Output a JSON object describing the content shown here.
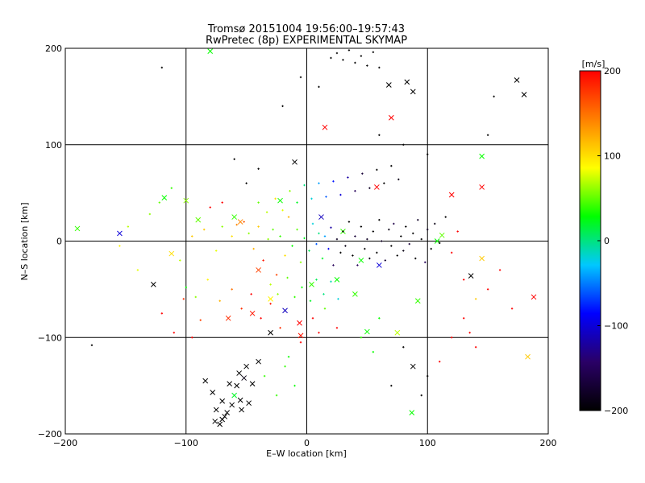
{
  "chart_data": {
    "type": "scatter",
    "title": "Tromsø 20151004 19:56:00–19:57:43",
    "subtitle": "RwPretec (8p) EXPERIMENTAL SKYMAP",
    "xlabel": "E–W location [km]",
    "ylabel": "N–S location [km]",
    "xlim": [
      -200,
      200
    ],
    "ylim": [
      -200,
      200
    ],
    "xticks": [
      "−200",
      "−100",
      "0",
      "100",
      "200"
    ],
    "yticks": [
      "−200",
      "−100",
      "0",
      "100",
      "200"
    ],
    "grid": true,
    "colorbar": {
      "label": "[m/s]",
      "range": [
        -200,
        200
      ],
      "ticks": [
        "200",
        "100",
        "0",
        "−100",
        "−200"
      ],
      "stops": [
        "#000000",
        "#2a0066",
        "#0000ff",
        "#00c8ff",
        "#00ff00",
        "#ffff00",
        "#ff8000",
        "#ff0000"
      ]
    },
    "series": [
      {
        "marker": "x",
        "points": [
          [
            -190,
            13,
            40
          ],
          [
            -155,
            8,
            -100
          ],
          [
            -118,
            45,
            30
          ],
          [
            -100,
            42,
            60
          ],
          [
            -90,
            22,
            50
          ],
          [
            -127,
            -45,
            -200
          ],
          [
            -112,
            -13,
            100
          ],
          [
            -60,
            25,
            40
          ],
          [
            -55,
            20,
            140
          ],
          [
            -40,
            -30,
            170
          ],
          [
            -22,
            42,
            30
          ],
          [
            -30,
            -60,
            90
          ],
          [
            -18,
            -72,
            -110
          ],
          [
            -6,
            -85,
            200
          ],
          [
            -5,
            -98,
            190
          ],
          [
            -45,
            -75,
            190
          ],
          [
            -65,
            -80,
            180
          ],
          [
            -80,
            197,
            30
          ],
          [
            -70,
            -185,
            -200
          ],
          [
            -62,
            -170,
            -200
          ],
          [
            -58,
            -150,
            -200
          ],
          [
            -52,
            -142,
            -190
          ],
          [
            -55,
            -165,
            -200
          ],
          [
            -66,
            -178,
            -200
          ],
          [
            -60,
            -160,
            20
          ],
          [
            -72,
            -190,
            -200
          ],
          [
            -45,
            -148,
            -200
          ],
          [
            -50,
            -130,
            -200
          ],
          [
            -40,
            -125,
            -200
          ],
          [
            -30,
            -95,
            -200
          ],
          [
            -84,
            -145,
            -200
          ],
          [
            -78,
            -157,
            -200
          ],
          [
            -75,
            -175,
            -200
          ],
          [
            -68,
            -182,
            -200
          ],
          [
            -54,
            -175,
            -200
          ],
          [
            -48,
            -168,
            -200
          ],
          [
            -56,
            -137,
            -200
          ],
          [
            -64,
            -148,
            -200
          ],
          [
            -70,
            -166,
            -200
          ],
          [
            -76,
            -187,
            -200
          ],
          [
            -10,
            82,
            -200
          ],
          [
            15,
            118,
            200
          ],
          [
            70,
            128,
            200
          ],
          [
            68,
            162,
            -200
          ],
          [
            83,
            165,
            -200
          ],
          [
            88,
            155,
            -200
          ],
          [
            180,
            152,
            -200
          ],
          [
            174,
            167,
            -200
          ],
          [
            108,
            0,
            30
          ],
          [
            112,
            6,
            50
          ],
          [
            120,
            48,
            200
          ],
          [
            145,
            56,
            200
          ],
          [
            145,
            88,
            30
          ],
          [
            145,
            -18,
            110
          ],
          [
            136,
            -36,
            -200
          ],
          [
            188,
            -58,
            200
          ],
          [
            183,
            -120,
            110
          ],
          [
            92,
            -62,
            40
          ],
          [
            88,
            -130,
            -200
          ],
          [
            87,
            -178,
            30
          ],
          [
            50,
            -94,
            30
          ],
          [
            40,
            -55,
            40
          ],
          [
            60,
            -25,
            -100
          ],
          [
            75,
            -95,
            70
          ],
          [
            12,
            25,
            -110
          ],
          [
            45,
            -20,
            30
          ],
          [
            58,
            56,
            200
          ],
          [
            30,
            10,
            40
          ],
          [
            25,
            -40,
            30
          ],
          [
            4,
            -45,
            40
          ]
        ]
      },
      {
        "marker": "+",
        "points": [
          [
            -178,
            -108,
            -200
          ],
          [
            -155,
            -5,
            90
          ],
          [
            -105,
            -20,
            70
          ],
          [
            -95,
            5,
            110
          ],
          [
            -85,
            12,
            110
          ],
          [
            -75,
            -10,
            80
          ],
          [
            -70,
            15,
            60
          ],
          [
            -62,
            5,
            100
          ],
          [
            -58,
            17,
            140
          ],
          [
            -52,
            20,
            160
          ],
          [
            -48,
            8,
            60
          ],
          [
            -44,
            -8,
            120
          ],
          [
            -40,
            15,
            110
          ],
          [
            -36,
            -20,
            190
          ],
          [
            -32,
            2,
            60
          ],
          [
            -28,
            12,
            50
          ],
          [
            -25,
            -35,
            170
          ],
          [
            -22,
            5,
            40
          ],
          [
            -18,
            -15,
            100
          ],
          [
            -15,
            25,
            120
          ],
          [
            -12,
            -5,
            30
          ],
          [
            -8,
            12,
            50
          ],
          [
            -5,
            -22,
            60
          ],
          [
            -2,
            3,
            20
          ],
          [
            2,
            -10,
            10
          ],
          [
            5,
            18,
            -20
          ],
          [
            8,
            -3,
            -60
          ],
          [
            10,
            8,
            0
          ],
          [
            13,
            -18,
            20
          ],
          [
            15,
            5,
            -40
          ],
          [
            18,
            -8,
            -90
          ],
          [
            20,
            14,
            -120
          ],
          [
            22,
            -25,
            -150
          ],
          [
            25,
            2,
            -180
          ],
          [
            28,
            -12,
            -200
          ],
          [
            30,
            10,
            -200
          ],
          [
            32,
            -5,
            -190
          ],
          [
            35,
            20,
            -200
          ],
          [
            38,
            -15,
            -200
          ],
          [
            40,
            5,
            -170
          ],
          [
            42,
            -25,
            -150
          ],
          [
            45,
            15,
            -200
          ],
          [
            48,
            -8,
            -200
          ],
          [
            50,
            2,
            -180
          ],
          [
            52,
            -18,
            -190
          ],
          [
            55,
            10,
            -200
          ],
          [
            58,
            -12,
            -200
          ],
          [
            60,
            22,
            -200
          ],
          [
            62,
            0,
            -180
          ],
          [
            65,
            -20,
            -170
          ],
          [
            68,
            12,
            -190
          ],
          [
            70,
            -5,
            -200
          ],
          [
            72,
            18,
            -160
          ],
          [
            75,
            -15,
            -200
          ],
          [
            78,
            5,
            -200
          ],
          [
            80,
            -10,
            -190
          ],
          [
            82,
            15,
            -200
          ],
          [
            85,
            -3,
            -170
          ],
          [
            88,
            8,
            -200
          ],
          [
            90,
            -18,
            -200
          ],
          [
            92,
            22,
            -180
          ],
          [
            95,
            2,
            -200
          ],
          [
            98,
            -22,
            -150
          ],
          [
            100,
            12,
            -180
          ],
          [
            103,
            -8,
            -200
          ],
          [
            106,
            18,
            -190
          ],
          [
            110,
            -2,
            -200
          ],
          [
            115,
            25,
            -200
          ],
          [
            120,
            -12,
            200
          ],
          [
            125,
            10,
            200
          ],
          [
            -30,
            -45,
            70
          ],
          [
            -24,
            -55,
            60
          ],
          [
            -16,
            -38,
            50
          ],
          [
            -10,
            -58,
            40
          ],
          [
            -4,
            -48,
            30
          ],
          [
            3,
            -62,
            20
          ],
          [
            8,
            -40,
            10
          ],
          [
            14,
            -55,
            0
          ],
          [
            20,
            -42,
            -10
          ],
          [
            26,
            -60,
            -20
          ],
          [
            -40,
            40,
            50
          ],
          [
            -33,
            30,
            70
          ],
          [
            -26,
            44,
            100
          ],
          [
            -20,
            32,
            80
          ],
          [
            -14,
            52,
            60
          ],
          [
            -8,
            40,
            20
          ],
          [
            -2,
            58,
            0
          ],
          [
            4,
            44,
            -20
          ],
          [
            10,
            60,
            -40
          ],
          [
            16,
            46,
            -60
          ],
          [
            22,
            62,
            -80
          ],
          [
            28,
            48,
            -100
          ],
          [
            34,
            66,
            -120
          ],
          [
            40,
            52,
            -150
          ],
          [
            46,
            70,
            -170
          ],
          [
            52,
            55,
            -180
          ],
          [
            58,
            74,
            -200
          ],
          [
            64,
            60,
            -200
          ],
          [
            70,
            78,
            -200
          ],
          [
            76,
            64,
            -190
          ],
          [
            -100,
            -48,
            30
          ],
          [
            -92,
            -58,
            60
          ],
          [
            -82,
            -40,
            90
          ],
          [
            -72,
            -62,
            120
          ],
          [
            -62,
            -50,
            150
          ],
          [
            -54,
            -70,
            180
          ],
          [
            -46,
            -55,
            200
          ],
          [
            -38,
            -80,
            200
          ],
          [
            -30,
            -65,
            190
          ],
          [
            -22,
            -90,
            180
          ],
          [
            -130,
            28,
            60
          ],
          [
            -122,
            40,
            50
          ],
          [
            -112,
            55,
            40
          ],
          [
            -140,
            -30,
            80
          ],
          [
            -148,
            15,
            70
          ],
          [
            20,
            190,
            -200
          ],
          [
            25,
            195,
            -200
          ],
          [
            30,
            188,
            -200
          ],
          [
            35,
            198,
            -200
          ],
          [
            40,
            185,
            -200
          ],
          [
            45,
            192,
            -200
          ],
          [
            50,
            182,
            -200
          ],
          [
            55,
            196,
            -200
          ],
          [
            60,
            180,
            -200
          ],
          [
            -5,
            170,
            -200
          ],
          [
            10,
            160,
            -200
          ],
          [
            -20,
            140,
            -200
          ],
          [
            60,
            110,
            -200
          ],
          [
            80,
            100,
            -200
          ],
          [
            100,
            90,
            -200
          ],
          [
            150,
            110,
            -200
          ],
          [
            155,
            150,
            -200
          ],
          [
            -120,
            180,
            -200
          ],
          [
            130,
            -80,
            200
          ],
          [
            135,
            -95,
            200
          ],
          [
            140,
            -110,
            200
          ],
          [
            120,
            -100,
            200
          ],
          [
            110,
            -125,
            200
          ],
          [
            100,
            -140,
            -200
          ],
          [
            95,
            -160,
            -200
          ],
          [
            70,
            -150,
            -200
          ],
          [
            80,
            -110,
            -200
          ],
          [
            60,
            -80,
            30
          ],
          [
            55,
            -115,
            30
          ],
          [
            45,
            -100,
            40
          ],
          [
            -10,
            -150,
            30
          ],
          [
            -18,
            -130,
            40
          ],
          [
            -25,
            -160,
            40
          ],
          [
            -15,
            -120,
            30
          ],
          [
            -35,
            -140,
            40
          ],
          [
            150,
            -50,
            200
          ],
          [
            160,
            -30,
            200
          ],
          [
            170,
            -70,
            200
          ],
          [
            140,
            -60,
            110
          ],
          [
            130,
            -40,
            200
          ],
          [
            -95,
            -100,
            200
          ],
          [
            -110,
            -95,
            200
          ],
          [
            -120,
            -75,
            200
          ],
          [
            -102,
            -60,
            180
          ],
          [
            -88,
            -82,
            170
          ],
          [
            5,
            -80,
            200
          ],
          [
            10,
            -95,
            200
          ],
          [
            15,
            -70,
            50
          ],
          [
            -5,
            -105,
            200
          ],
          [
            25,
            -90,
            200
          ],
          [
            -50,
            60,
            -200
          ],
          [
            -40,
            75,
            -200
          ],
          [
            -60,
            85,
            -200
          ],
          [
            -70,
            40,
            200
          ],
          [
            -80,
            35,
            200
          ]
        ]
      }
    ]
  }
}
